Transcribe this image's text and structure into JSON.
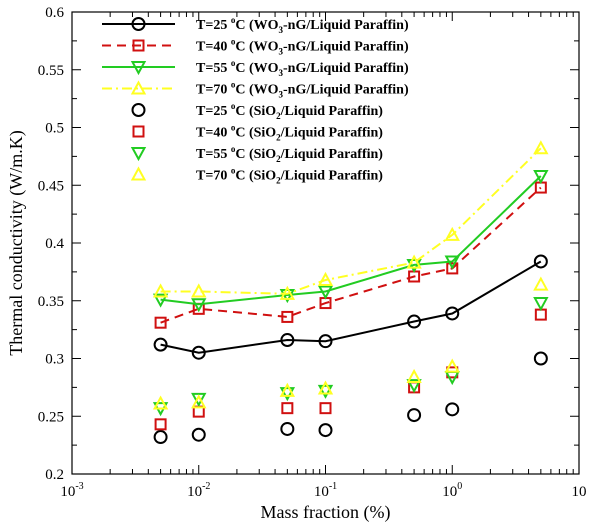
{
  "chart_data": {
    "type": "line",
    "xscale": "log",
    "xlim": [
      0.001,
      10
    ],
    "ylim": [
      0.2,
      0.6
    ],
    "xlabel": "Mass fraction (%)",
    "ylabel": "Thermal conductivity (W/m.K)",
    "x_ticks": [
      {
        "value": 0.001,
        "base": "10",
        "exp": "-3"
      },
      {
        "value": 0.01,
        "base": "10",
        "exp": "-2"
      },
      {
        "value": 0.1,
        "base": "10",
        "exp": "-1"
      },
      {
        "value": 1,
        "base": "10",
        "exp": "0"
      },
      {
        "value": 10,
        "base": "10",
        "exp": ""
      }
    ],
    "y_ticks": [
      {
        "value": 0.2,
        "label": "0.2"
      },
      {
        "value": 0.25,
        "label": "0.25"
      },
      {
        "value": 0.3,
        "label": "0.3"
      },
      {
        "value": 0.35,
        "label": "0.35"
      },
      {
        "value": 0.4,
        "label": "0.4"
      },
      {
        "value": 0.45,
        "label": "0.45"
      },
      {
        "value": 0.5,
        "label": "0.5"
      },
      {
        "value": 0.55,
        "label": "0.55"
      },
      {
        "value": 0.6,
        "label": "0.6"
      }
    ],
    "x": [
      0.005,
      0.01,
      0.05,
      0.1,
      0.5,
      1,
      5
    ],
    "grid": false,
    "legend_position": "top-left",
    "series": [
      {
        "temp": "T=25",
        "material": "WO",
        "sub": "3",
        "rest": "-nG/Liquid Paraffin)",
        "values": [
          0.312,
          0.305,
          0.316,
          0.315,
          0.332,
          0.339,
          0.384
        ],
        "color": "#000000",
        "marker": "circle",
        "line": "solid"
      },
      {
        "temp": "T=40",
        "material": "WO",
        "sub": "3",
        "rest": "-nG/Liquid Paraffin)",
        "values": [
          0.331,
          0.343,
          0.336,
          0.348,
          0.371,
          0.378,
          0.448
        ],
        "color": "#d01010",
        "marker": "square",
        "line": "dashed"
      },
      {
        "temp": "T=55",
        "material": "WO",
        "sub": "3",
        "rest": "-nG/Liquid Paraffin)",
        "values": [
          0.351,
          0.347,
          0.355,
          0.358,
          0.381,
          0.384,
          0.458
        ],
        "color": "#22cc22",
        "marker": "triangle-down",
        "line": "solid"
      },
      {
        "temp": "T=70",
        "material": "WO",
        "sub": "3",
        "rest": "-nG/Liquid Paraffin)",
        "values": [
          0.358,
          0.358,
          0.356,
          0.368,
          0.383,
          0.407,
          0.482
        ],
        "color": "#ffff22",
        "marker": "triangle-up",
        "line": "dashdot"
      },
      {
        "temp": "T=25",
        "material": "SiO",
        "sub": "2",
        "rest": "/Liquid Paraffin)",
        "values": [
          0.232,
          0.234,
          0.239,
          0.238,
          0.251,
          0.256,
          0.3
        ],
        "color": "#000000",
        "marker": "circle",
        "line": "none"
      },
      {
        "temp": "T=40",
        "material": "SiO",
        "sub": "2",
        "rest": "/Liquid Paraffin)",
        "values": [
          0.243,
          0.254,
          0.257,
          0.257,
          0.275,
          0.288,
          0.338
        ],
        "color": "#d01010",
        "marker": "square",
        "line": "none"
      },
      {
        "temp": "T=55",
        "material": "SiO",
        "sub": "2",
        "rest": "/Liquid Paraffin)",
        "values": [
          0.257,
          0.265,
          0.27,
          0.272,
          0.277,
          0.284,
          0.348
        ],
        "color": "#22cc22",
        "marker": "triangle-down",
        "line": "none"
      },
      {
        "temp": "T=70",
        "material": "SiO",
        "sub": "2",
        "rest": "/Liquid Paraffin)",
        "values": [
          0.261,
          0.262,
          0.272,
          0.274,
          0.284,
          0.293,
          0.364
        ],
        "color": "#ffff22",
        "marker": "triangle-up",
        "line": "none"
      }
    ]
  }
}
